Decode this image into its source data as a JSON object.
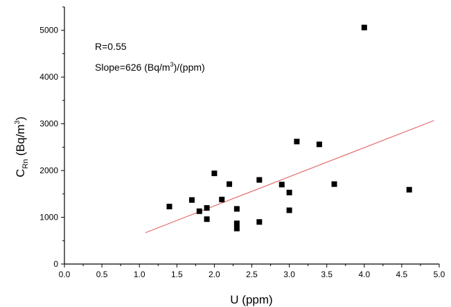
{
  "chart_data": {
    "type": "scatter",
    "xlabel": "U (ppm)",
    "ylabel": {
      "main": "C",
      "sub": "Rn",
      "unit_open": " (Bq/m",
      "sup": "3",
      "unit_close": ")"
    },
    "xlim": [
      0.0,
      5.0
    ],
    "ylim": [
      0,
      5500
    ],
    "x_ticks": [
      0.0,
      0.5,
      1.0,
      1.5,
      2.0,
      2.5,
      3.0,
      3.5,
      4.0,
      4.5,
      5.0
    ],
    "x_tick_labels": [
      "0.0",
      "0.5",
      "1.0",
      "1.5",
      "2.0",
      "2.5",
      "3.0",
      "3.5",
      "4.0",
      "4.5",
      "5.0"
    ],
    "y_ticks": [
      0,
      1000,
      2000,
      3000,
      4000,
      5000
    ],
    "y_tick_labels": [
      "0",
      "1000",
      "2000",
      "3000",
      "4000",
      "5000"
    ],
    "grid": false,
    "series": [
      {
        "marker": "square",
        "color": "#000000",
        "points": [
          {
            "x": 1.4,
            "y": 1230
          },
          {
            "x": 1.7,
            "y": 1370
          },
          {
            "x": 1.8,
            "y": 1130
          },
          {
            "x": 1.9,
            "y": 1200
          },
          {
            "x": 1.9,
            "y": 960
          },
          {
            "x": 2.0,
            "y": 1940
          },
          {
            "x": 2.1,
            "y": 1380
          },
          {
            "x": 2.2,
            "y": 1710
          },
          {
            "x": 2.3,
            "y": 1180
          },
          {
            "x": 2.3,
            "y": 870
          },
          {
            "x": 2.3,
            "y": 760
          },
          {
            "x": 2.6,
            "y": 1800
          },
          {
            "x": 2.6,
            "y": 900
          },
          {
            "x": 2.9,
            "y": 1700
          },
          {
            "x": 3.0,
            "y": 1530
          },
          {
            "x": 3.0,
            "y": 1150
          },
          {
            "x": 3.1,
            "y": 2620
          },
          {
            "x": 3.4,
            "y": 2560
          },
          {
            "x": 3.6,
            "y": 1710
          },
          {
            "x": 4.0,
            "y": 5060
          },
          {
            "x": 4.6,
            "y": 1590
          }
        ]
      }
    ],
    "fit_line": {
      "color": "#e05050",
      "x_start": 1.08,
      "y_start": 670,
      "x_end": 4.93,
      "y_end": 3070
    },
    "annotations": {
      "r": "R=0.55",
      "slope": {
        "prefix": "Slope=626 (Bq/m",
        "sup": "3",
        "suffix": ")/(ppm)"
      }
    }
  }
}
